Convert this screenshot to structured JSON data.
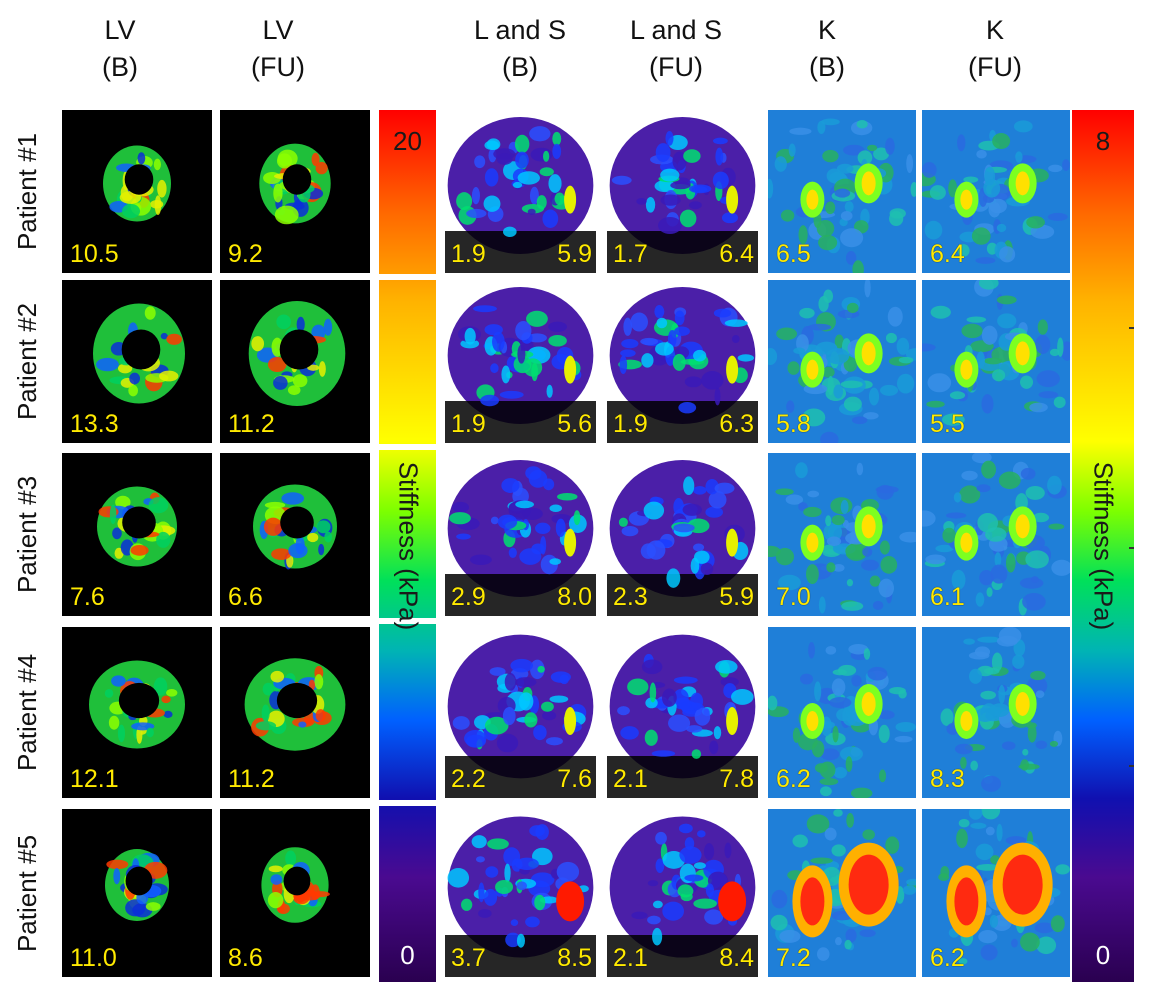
{
  "columns": [
    {
      "line1": "LV",
      "line2": "(B)"
    },
    {
      "line1": "LV",
      "line2": "(FU)"
    },
    {
      "line1": "L and S",
      "line2": "(B)"
    },
    {
      "line1": "L and S",
      "line2": "(FU)"
    },
    {
      "line1": "K",
      "line2": "(B)"
    },
    {
      "line1": "K",
      "line2": "(FU)"
    }
  ],
  "rows": [
    {
      "label": "Patient #1",
      "lv_b": "10.5",
      "lv_fu": "9.2",
      "ls_b": [
        "1.9",
        "5.9"
      ],
      "ls_fu": [
        "1.7",
        "6.4"
      ],
      "k_b": "6.5",
      "k_fu": "6.4"
    },
    {
      "label": "Patient #2",
      "lv_b": "13.3",
      "lv_fu": "11.2",
      "ls_b": [
        "1.9",
        "5.6"
      ],
      "ls_fu": [
        "1.9",
        "6.3"
      ],
      "k_b": "5.8",
      "k_fu": "5.5"
    },
    {
      "label": "Patient #3",
      "lv_b": "7.6",
      "lv_fu": "6.6",
      "ls_b": [
        "2.9",
        "8.0"
      ],
      "ls_fu": [
        "2.3",
        "5.9"
      ],
      "k_b": "7.0",
      "k_fu": "6.1"
    },
    {
      "label": "Patient #4",
      "lv_b": "12.1",
      "lv_fu": "11.2",
      "ls_b": [
        "2.2",
        "7.6"
      ],
      "ls_fu": [
        "2.1",
        "7.8"
      ],
      "k_b": "6.2",
      "k_fu": "8.3"
    },
    {
      "label": "Patient #5",
      "lv_b": "11.0",
      "lv_fu": "8.6",
      "ls_b": [
        "3.7",
        "8.5"
      ],
      "ls_fu": [
        "2.1",
        "8.4"
      ],
      "k_b": "7.2",
      "k_fu": "6.2"
    }
  ],
  "colorbar_left": {
    "max": "20",
    "min": "0",
    "label": "Stiffness (kPa)"
  },
  "colorbar_right": {
    "max": "8",
    "min": "0",
    "label": "Stiffness (kPa)"
  }
}
